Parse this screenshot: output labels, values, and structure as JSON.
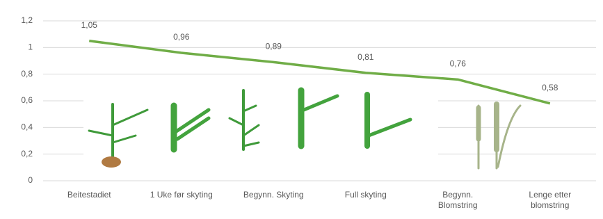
{
  "chart_data": {
    "type": "line",
    "categories": [
      "Beitestadiet",
      "1 Uke før skyting",
      "Begynn. Skyting",
      "Full skyting",
      "Begynn.\nBlomstring",
      "Lenge etter\nblomstring"
    ],
    "values": [
      1.05,
      0.96,
      0.89,
      0.81,
      0.76,
      0.58
    ],
    "value_labels": [
      "1,05",
      "0,96",
      "0,89",
      "0,81",
      "0,76",
      "0,58"
    ],
    "color": "#70ad47",
    "ylim": [
      0,
      1.2
    ],
    "yticks": [
      0,
      {
        "value": 0.2,
        "label": "0,2"
      },
      {
        "value": 0.4,
        "label": "0,4"
      },
      {
        "value": 0.6,
        "label": "0,6"
      },
      {
        "value": 0.8,
        "label": "0,8"
      },
      1,
      {
        "value": 1.2,
        "label": "1,2"
      }
    ],
    "grid": true
  }
}
